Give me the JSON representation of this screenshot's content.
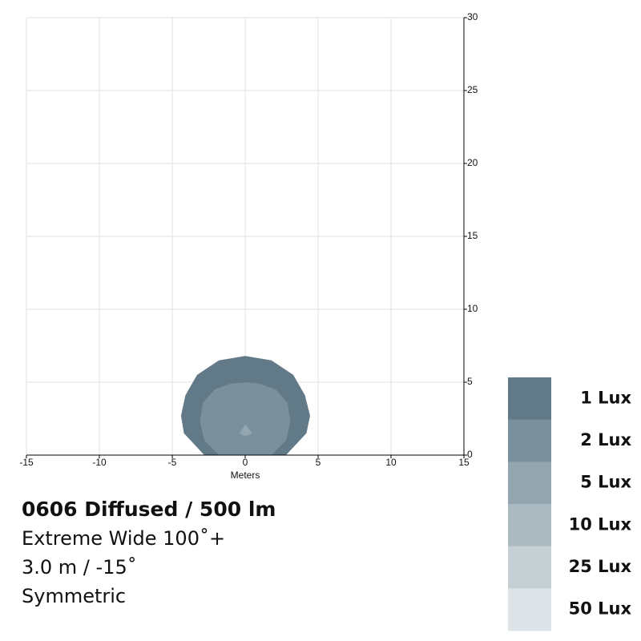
{
  "chart_data": {
    "type": "contour",
    "title": "0606 Diffused / 500 lm",
    "subtitle": [
      "Extreme Wide 100˚+",
      "3.0 m / -15˚",
      "Symmetric"
    ],
    "x_label": "Meters",
    "xlim": [
      -15,
      15
    ],
    "xticks": [
      -15,
      -10,
      -5,
      0,
      5,
      10,
      15
    ],
    "ylim": [
      0,
      30
    ],
    "yticks": [
      0,
      5,
      10,
      15,
      20,
      25,
      30
    ],
    "grid": true,
    "series": [
      {
        "name": "1 Lux",
        "color": "#627a87",
        "x": [
          -2.8,
          -4.2,
          -4.4,
          -4.1,
          -3.3,
          -1.8,
          0,
          1.8,
          3.3,
          4.1,
          4.45,
          4.2,
          2.8
        ],
        "y": [
          0,
          1.5,
          2.7,
          4.1,
          5.5,
          6.5,
          6.8,
          6.5,
          5.5,
          4.1,
          2.7,
          1.5,
          0
        ]
      },
      {
        "name": "2 Lux",
        "color": "#7a909c",
        "x": [
          -1.8,
          -2.8,
          -3.1,
          -2.9,
          -2.1,
          -1.0,
          0,
          1.0,
          2.1,
          2.9,
          3.1,
          2.8,
          1.8
        ],
        "y": [
          0,
          1.0,
          2.3,
          3.6,
          4.5,
          4.9,
          5.0,
          4.9,
          4.5,
          3.6,
          2.3,
          1.0,
          0
        ]
      },
      {
        "name": "5 Lux",
        "color": "#93a6af",
        "x": [
          -0.4,
          0,
          0.5,
          0
        ],
        "y": [
          1.5,
          2.1,
          1.5,
          1.3
        ]
      },
      {
        "name": "10 Lux",
        "color": "#abbac1"
      },
      {
        "name": "25 Lux",
        "color": "#c5d0d5"
      },
      {
        "name": "50 Lux",
        "color": "#dde3e6"
      }
    ]
  }
}
